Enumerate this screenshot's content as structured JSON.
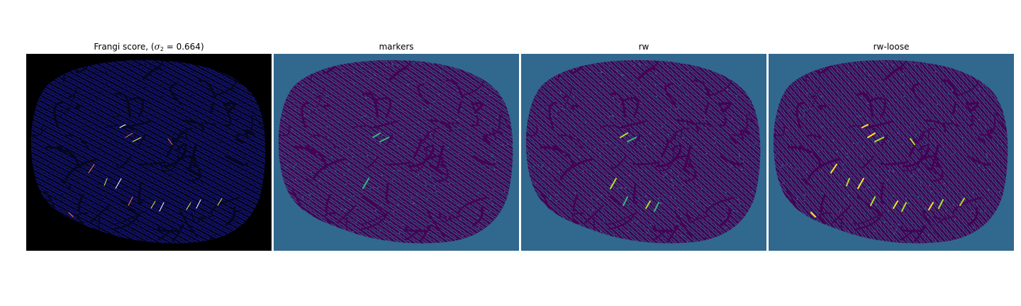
{
  "figure": {
    "panels": [
      {
        "id": "frangi",
        "title_prefix": "Frangi score, (",
        "title_math_symbol": "σ",
        "title_math_sub": "2",
        "title_math_rest": " = 0.664",
        "title_suffix": ")",
        "colormap": "gnuplot2",
        "background_color": "#000000",
        "texture_color": "#1a1aa8",
        "line_color": "#06061f",
        "highlight_colors": [
          "#ff7a4d",
          "#e8e84a",
          "#ffffff"
        ]
      },
      {
        "id": "markers",
        "title": "markers",
        "colormap": "viridis",
        "background_color": "#31688e",
        "texture_color": "#440154",
        "highlight_colors": [
          "#35b779"
        ]
      },
      {
        "id": "rw",
        "title": "rw",
        "colormap": "viridis",
        "background_color": "#31688e",
        "texture_color": "#440154",
        "highlight_colors": [
          "#b5de2b",
          "#35b779"
        ]
      },
      {
        "id": "rw-loose",
        "title": "rw-loose",
        "colormap": "viridis",
        "background_color": "#31688e",
        "texture_color": "#440154",
        "highlight_colors": [
          "#fde725",
          "#b5de2b"
        ]
      }
    ]
  }
}
